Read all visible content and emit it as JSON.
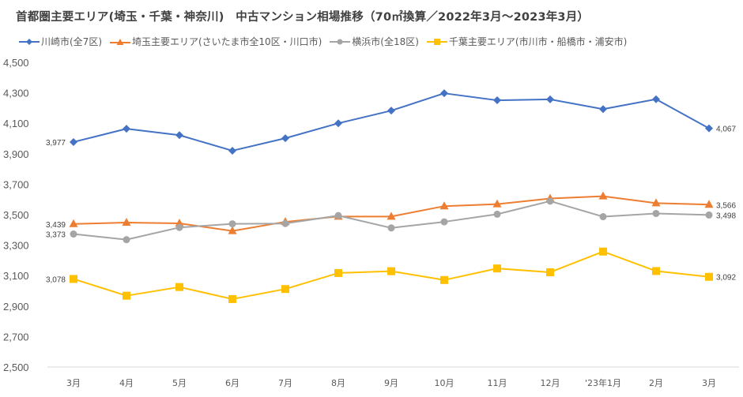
{
  "chart_data": {
    "type": "line",
    "title": "首都圏主要エリア(埼玉・千葉・神奈川)　中古マンション相場推移（70㎡換算／2022年3月～2023年3月）",
    "xlabel": "",
    "ylabel": "",
    "categories": [
      "3月",
      "4月",
      "5月",
      "6月",
      "7月",
      "8月",
      "9月",
      "10月",
      "11月",
      "12月",
      "'23年1月",
      "2月",
      "3月"
    ],
    "ylim": [
      2500,
      4500
    ],
    "yticks": [
      2500,
      2700,
      2900,
      3100,
      3300,
      3500,
      3700,
      3900,
      4100,
      4300,
      4500
    ],
    "ytick_labels": [
      "2,500",
      "2,700",
      "2,900",
      "3,100",
      "3,300",
      "3,500",
      "3,700",
      "3,900",
      "4,100",
      "4,300",
      "4,500"
    ],
    "grid": false,
    "legend_position": "top-left",
    "series": [
      {
        "name": "川崎市(全7区)",
        "color": "#4472C4",
        "marker": "diamond",
        "values": [
          3977,
          4064,
          4022,
          3920,
          4002,
          4100,
          4183,
          4297,
          4251,
          4257,
          4193,
          4258,
          4067
        ],
        "start_label": "3,977",
        "end_label": "4,067"
      },
      {
        "name": "埼玉主要エリア(さいたま市全10区・川口市)",
        "color": "#ED7D31",
        "marker": "triangle",
        "values": [
          3439,
          3448,
          3443,
          3393,
          3453,
          3488,
          3488,
          3556,
          3569,
          3606,
          3621,
          3576,
          3566
        ],
        "start_label": "3,439",
        "end_label": "3,566"
      },
      {
        "name": "横浜市(全18区)",
        "color": "#A5A5A5",
        "marker": "circle",
        "values": [
          3373,
          3336,
          3416,
          3440,
          3442,
          3494,
          3413,
          3453,
          3503,
          3589,
          3487,
          3508,
          3498
        ],
        "start_label": "3,373",
        "end_label": "3,498"
      },
      {
        "name": "千葉主要エリア(市川市・船橋市・浦安市)",
        "color": "#FFC000",
        "marker": "square",
        "values": [
          3078,
          2968,
          3025,
          2946,
          3012,
          3117,
          3129,
          3071,
          3147,
          3122,
          3258,
          3130,
          3092
        ],
        "start_label": "3,078",
        "end_label": "3,092"
      }
    ]
  }
}
